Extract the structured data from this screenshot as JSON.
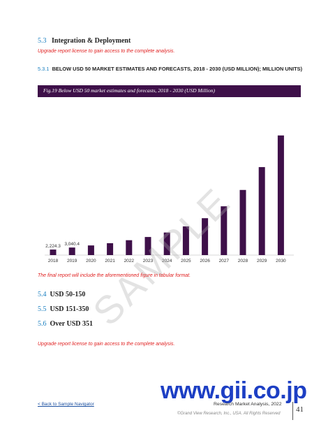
{
  "section53": {
    "num": "5.3",
    "title": "Integration & Deployment"
  },
  "upgrade_note_1": "Upgrade report license to gain access to the complete analysis.",
  "section531": {
    "num": "5.3.1",
    "title": "BELOW USD 50 MARKET ESTIMATES AND FORECASTS, 2018 - 2030 (USD MILLION); MILLION UNITS)"
  },
  "figure": {
    "caption": "Fig.19  Below USD 50 market estimates and forecasts, 2018 - 2030 (USD Million)"
  },
  "colors": {
    "bar": "#3e1049",
    "accent_blue": "#1a7fc0",
    "red_note": "#e02020"
  },
  "chart_data": {
    "type": "bar",
    "categories": [
      "2018",
      "2019",
      "2020",
      "2021",
      "2022",
      "2023",
      "2024",
      "2025",
      "2026",
      "2027",
      "2028",
      "2029",
      "2030"
    ],
    "values": [
      2224.3,
      3040.4,
      3900,
      4800,
      6000,
      7300,
      9100,
      11600,
      14900,
      19700,
      26300,
      35500,
      48300
    ],
    "data_labels": [
      "2,224.3",
      "3,040.4",
      "",
      "",
      "",
      "",
      "",
      "",
      "",
      "",
      "",
      "",
      ""
    ],
    "ylim": [
      0,
      55000
    ],
    "grid": false
  },
  "tabular_note": "The final report will include the aforementioned figure in tabular format.",
  "sections": [
    {
      "num": "5.4",
      "title": "USD 50-150"
    },
    {
      "num": "5.5",
      "title": "USD 151-350"
    },
    {
      "num": "5.6",
      "title": "Over USD 351"
    }
  ],
  "upgrade_note_2": "Upgrade report license to gain access to the complete analysis.",
  "watermark": "SAMPLE",
  "gii_logo": "www.gii.co.jp",
  "footer": {
    "back_link": "< Back to Sample Navigator",
    "report_title": "Research Market Analysis, 2022",
    "copyright": "©Grand View Research, Inc., USA. All Rights Reserved",
    "page_number": "41"
  }
}
